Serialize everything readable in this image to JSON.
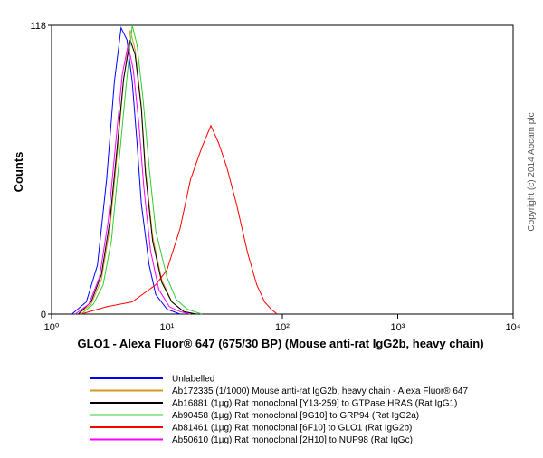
{
  "chart_data": {
    "type": "line",
    "xscale": "log",
    "xlabel": "GLO1 - Alexa Fluor® 647 (675/30 BP) (Mouse anti-rat IgG2b, heavy chain)",
    "ylabel": "Counts",
    "copyright": "Copyright (c) 2014 Abcam plc",
    "xlim": [
      1,
      10000
    ],
    "ylim": [
      0,
      118
    ],
    "xticks": [
      {
        "value": 1,
        "label": "10⁰"
      },
      {
        "value": 10,
        "label": "10¹"
      },
      {
        "value": 100,
        "label": "10²"
      },
      {
        "value": 1000,
        "label": "10³"
      },
      {
        "value": 10000,
        "label": "10⁴"
      }
    ],
    "yticks": [
      0,
      118
    ],
    "series": [
      {
        "name": "Unlabelled",
        "color": "#0000ff",
        "x": [
          1.5,
          2,
          2.5,
          3,
          3.5,
          4,
          4.5,
          5,
          5.5,
          6,
          7,
          8,
          10,
          13
        ],
        "values": [
          0,
          5,
          20,
          55,
          95,
          117,
          112,
          95,
          70,
          45,
          20,
          8,
          2,
          0
        ]
      },
      {
        "name": "Ab172335 (1/1000) Mouse anti-rat IgG2b, heavy chain - Alexa Fluor® 647",
        "color": "#d49a20",
        "x": [
          1.7,
          2.2,
          2.7,
          3.2,
          3.7,
          4.2,
          4.8,
          5.3,
          6,
          6.5,
          7.5,
          9,
          11,
          14,
          18
        ],
        "values": [
          0,
          4,
          14,
          35,
          65,
          95,
          116,
          108,
          85,
          60,
          32,
          14,
          5,
          1,
          0
        ]
      },
      {
        "name": "Ab16881 (1µg) Rat monoclonal [Y13-259] to GTPase HRAS (Rat IgG1)",
        "color": "#000000",
        "x": [
          1.7,
          2.2,
          2.7,
          3.2,
          3.7,
          4.2,
          4.8,
          5.3,
          6,
          6.5,
          7.5,
          9,
          11,
          14,
          18
        ],
        "values": [
          0,
          5,
          16,
          38,
          68,
          96,
          112,
          106,
          84,
          58,
          30,
          13,
          5,
          1,
          0
        ]
      },
      {
        "name": "Ab90458 (1µg) Rat monoclonal [9G10] to GRP94 (Rat IgG2a)",
        "color": "#33cc33",
        "x": [
          1.8,
          2.3,
          2.8,
          3.3,
          3.8,
          4.4,
          5,
          5.5,
          6.2,
          7,
          8,
          10,
          12,
          15,
          20
        ],
        "values": [
          0,
          4,
          12,
          30,
          60,
          92,
          118,
          110,
          88,
          60,
          34,
          15,
          6,
          2,
          0
        ]
      },
      {
        "name": "Ab81461 (1µg) Rat monoclonal [6F10] to GLO1 (Rat IgG2b)",
        "color": "#ff0000",
        "x": [
          1.8,
          3,
          5,
          8,
          10,
          13,
          16,
          20,
          24,
          28,
          33,
          40,
          50,
          60,
          70,
          80,
          90
        ],
        "values": [
          0,
          3,
          5,
          12,
          18,
          35,
          55,
          68,
          77,
          70,
          60,
          45,
          25,
          12,
          5,
          2,
          0
        ]
      },
      {
        "name": "Ab50610 (1µg) Rat monoclonal [2H10] to NUP98 (Rat IgGc)",
        "color": "#ff00ff",
        "x": [
          1.6,
          2.1,
          2.6,
          3.1,
          3.6,
          4.1,
          4.6,
          5.1,
          5.7,
          6.3,
          7.2,
          8.5,
          10.5,
          13,
          16
        ],
        "values": [
          0,
          4,
          15,
          38,
          70,
          98,
          110,
          100,
          78,
          52,
          26,
          10,
          3,
          1,
          0
        ]
      }
    ]
  }
}
